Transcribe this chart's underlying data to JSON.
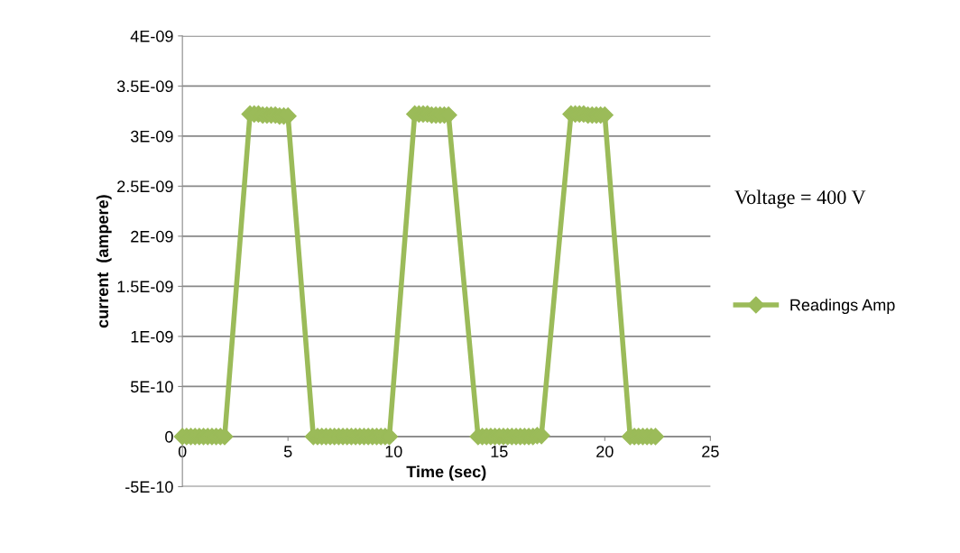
{
  "chart_data": {
    "type": "line",
    "xlabel": "Time (sec)",
    "ylabel": "current  (ampere)",
    "annotations": [
      "Voltage = 400 V"
    ],
    "series": [
      {
        "name": "Readings Amp",
        "color": "#9bbb59",
        "x": [
          0,
          0.2,
          0.4,
          0.6,
          0.8,
          1.0,
          1.2,
          1.4,
          1.6,
          1.8,
          2.0,
          3.2,
          3.4,
          3.6,
          3.8,
          4.0,
          4.2,
          4.4,
          4.6,
          4.8,
          5.0,
          6.2,
          6.4,
          6.6,
          6.8,
          7.0,
          7.2,
          7.4,
          7.6,
          7.8,
          8.0,
          8.2,
          8.4,
          8.6,
          8.8,
          9.0,
          9.2,
          9.4,
          9.6,
          9.8,
          11.0,
          11.2,
          11.4,
          11.6,
          11.8,
          12.0,
          12.2,
          12.4,
          12.6,
          14.0,
          14.2,
          14.4,
          14.6,
          14.8,
          15.0,
          15.2,
          15.4,
          15.6,
          15.8,
          16.0,
          16.2,
          16.4,
          16.6,
          16.8,
          17.0,
          18.4,
          18.6,
          18.8,
          19.0,
          19.2,
          19.4,
          19.6,
          19.8,
          20.0,
          21.2,
          21.4,
          21.6,
          21.8,
          22.0,
          22.2,
          22.4
        ],
        "values": [
          0,
          0,
          0,
          0,
          0,
          0,
          0,
          0,
          0,
          0,
          0,
          3.22e-09,
          3.22e-09,
          3.22e-09,
          3.21e-09,
          3.21e-09,
          3.21e-09,
          3.21e-09,
          3.2e-09,
          3.2e-09,
          3.2e-09,
          0,
          0,
          0,
          0,
          0,
          0,
          0,
          0,
          0,
          0,
          0,
          0,
          0,
          0,
          0,
          0,
          0,
          0,
          0,
          3.22e-09,
          3.22e-09,
          3.22e-09,
          3.22e-09,
          3.21e-09,
          3.21e-09,
          3.21e-09,
          3.21e-09,
          3.21e-09,
          0,
          0,
          0,
          0,
          0,
          0,
          0,
          0,
          0,
          0,
          0,
          0,
          0,
          0,
          1e-11,
          1e-11,
          3.22e-09,
          3.22e-09,
          3.22e-09,
          3.22e-09,
          3.21e-09,
          3.21e-09,
          3.21e-09,
          3.21e-09,
          3.21e-09,
          0,
          0,
          0,
          0,
          0,
          0,
          0
        ]
      }
    ],
    "xlim": [
      0,
      25
    ],
    "xticks": [
      0,
      5,
      10,
      15,
      20,
      25
    ],
    "ylim": [
      -5e-10,
      4e-09
    ],
    "yticks": [
      {
        "value": -5e-10,
        "label": "-5E-10"
      },
      {
        "value": 0,
        "label": "0"
      },
      {
        "value": 5e-10,
        "label": "5E-10"
      },
      {
        "value": 1e-09,
        "label": "1E-09"
      },
      {
        "value": 1.5e-09,
        "label": "1.5E-09"
      },
      {
        "value": 2e-09,
        "label": "2E-09"
      },
      {
        "value": 2.5e-09,
        "label": "2.5E-09"
      },
      {
        "value": 3e-09,
        "label": "3E-09"
      },
      {
        "value": 3.5e-09,
        "label": "3.5E-09"
      },
      {
        "value": 4e-09,
        "label": "4E-09"
      }
    ],
    "grid": "y",
    "legend": "right",
    "marker": "diamond",
    "line_style": "solid"
  }
}
